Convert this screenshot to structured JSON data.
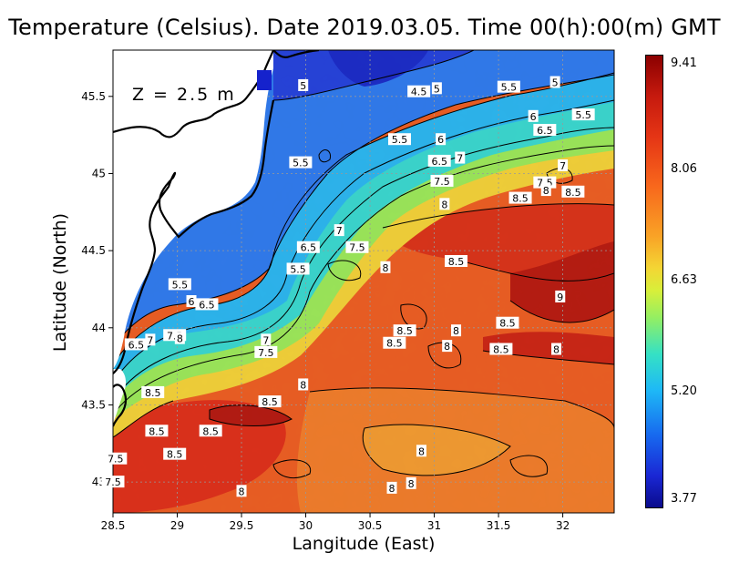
{
  "title": "Temperature (Celsius). Date 2019.03.05. Time 00(h):00(m) GMT",
  "depth_label": "Z = 2.5 m",
  "axes": {
    "x_title": "Langitude (East)",
    "y_title": "Latitude (North)",
    "x_ticks": [
      "28.5",
      "29",
      "29.5",
      "30",
      "30.5",
      "31",
      "31.5",
      "32"
    ],
    "y_ticks": [
      "43",
      "43.5",
      "44",
      "44.5",
      "45",
      "45.5"
    ]
  },
  "colorbar": {
    "max": "9.41",
    "tick2": "8.06",
    "tick3": "6.63",
    "tick4": "5.20",
    "min": "3.77"
  },
  "contour_labels": [
    {
      "text": "5",
      "lon": 29.98,
      "lat": 45.57
    },
    {
      "text": "4.5",
      "lon": 30.88,
      "lat": 45.53
    },
    {
      "text": "5",
      "lon": 31.02,
      "lat": 45.55
    },
    {
      "text": "5.5",
      "lon": 31.58,
      "lat": 45.56
    },
    {
      "text": "5",
      "lon": 31.94,
      "lat": 45.59
    },
    {
      "text": "5.5",
      "lon": 32.16,
      "lat": 45.38
    },
    {
      "text": "6",
      "lon": 31.77,
      "lat": 45.37
    },
    {
      "text": "6.5",
      "lon": 31.86,
      "lat": 45.28
    },
    {
      "text": "5.5",
      "lon": 29.96,
      "lat": 45.07
    },
    {
      "text": "5.5",
      "lon": 30.73,
      "lat": 45.22
    },
    {
      "text": "6",
      "lon": 31.05,
      "lat": 45.22
    },
    {
      "text": "6.5",
      "lon": 31.04,
      "lat": 45.08
    },
    {
      "text": "7",
      "lon": 31.2,
      "lat": 45.1
    },
    {
      "text": "7.5",
      "lon": 31.06,
      "lat": 44.95
    },
    {
      "text": "7",
      "lon": 32.0,
      "lat": 45.05
    },
    {
      "text": "7.5",
      "lon": 31.86,
      "lat": 44.94
    },
    {
      "text": "8",
      "lon": 31.87,
      "lat": 44.89
    },
    {
      "text": "8.5",
      "lon": 32.08,
      "lat": 44.88
    },
    {
      "text": "8.5",
      "lon": 31.67,
      "lat": 44.84
    },
    {
      "text": "8",
      "lon": 31.08,
      "lat": 44.8
    },
    {
      "text": "7",
      "lon": 30.26,
      "lat": 44.63
    },
    {
      "text": "6.5",
      "lon": 30.02,
      "lat": 44.52
    },
    {
      "text": "7.5",
      "lon": 30.4,
      "lat": 44.52
    },
    {
      "text": "8",
      "lon": 30.62,
      "lat": 44.39
    },
    {
      "text": "8.5",
      "lon": 31.17,
      "lat": 44.43
    },
    {
      "text": "5.5",
      "lon": 29.94,
      "lat": 44.38
    },
    {
      "text": "5.5",
      "lon": 29.02,
      "lat": 44.28
    },
    {
      "text": "6",
      "lon": 29.11,
      "lat": 44.17
    },
    {
      "text": "6.5",
      "lon": 29.23,
      "lat": 44.15
    },
    {
      "text": "9",
      "lon": 31.98,
      "lat": 44.2
    },
    {
      "text": "8.5",
      "lon": 30.77,
      "lat": 43.98
    },
    {
      "text": "8",
      "lon": 31.17,
      "lat": 43.98
    },
    {
      "text": "8.5",
      "lon": 31.57,
      "lat": 44.03
    },
    {
      "text": "7.5",
      "lon": 28.98,
      "lat": 43.95
    },
    {
      "text": "8",
      "lon": 29.02,
      "lat": 43.93
    },
    {
      "text": "6.5",
      "lon": 28.68,
      "lat": 43.89
    },
    {
      "text": "7",
      "lon": 28.79,
      "lat": 43.92
    },
    {
      "text": "7",
      "lon": 29.69,
      "lat": 43.92
    },
    {
      "text": "7.5",
      "lon": 29.69,
      "lat": 43.84
    },
    {
      "text": "8.5",
      "lon": 30.69,
      "lat": 43.9
    },
    {
      "text": "8",
      "lon": 31.1,
      "lat": 43.88
    },
    {
      "text": "8.5",
      "lon": 31.52,
      "lat": 43.86
    },
    {
      "text": "8",
      "lon": 31.95,
      "lat": 43.86
    },
    {
      "text": "8",
      "lon": 29.98,
      "lat": 43.63
    },
    {
      "text": "8.5",
      "lon": 28.81,
      "lat": 43.58
    },
    {
      "text": "8.5",
      "lon": 29.72,
      "lat": 43.52
    },
    {
      "text": "8.5",
      "lon": 28.84,
      "lat": 43.33
    },
    {
      "text": "8.5",
      "lon": 29.26,
      "lat": 43.33
    },
    {
      "text": "7.5",
      "lon": 28.52,
      "lat": 43.15
    },
    {
      "text": "8.5",
      "lon": 28.98,
      "lat": 43.18
    },
    {
      "text": "8",
      "lon": 30.9,
      "lat": 43.2
    },
    {
      "text": "7.5",
      "lon": 28.5,
      "lat": 43.0
    },
    {
      "text": "8",
      "lon": 29.5,
      "lat": 42.94
    },
    {
      "text": "8",
      "lon": 30.67,
      "lat": 42.96
    },
    {
      "text": "8",
      "lon": 30.82,
      "lat": 42.99
    }
  ]
}
